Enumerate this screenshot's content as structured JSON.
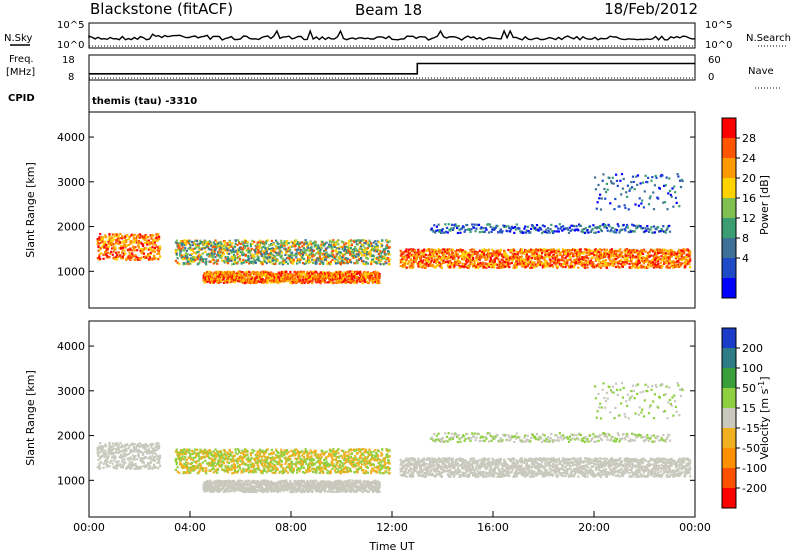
{
  "header": {
    "station": "Blackstone (fitACF)",
    "beam": "Beam 18",
    "date": "18/Feb/2012"
  },
  "noise_panel": {
    "left_label": "N.Sky",
    "right_label": "N.Search",
    "left_ticks": [
      "10^5",
      "10^0"
    ],
    "right_ticks": [
      "10^5",
      "10^0"
    ]
  },
  "freq_panel": {
    "left_label_line1": "Freq.",
    "left_label_line2": "[MHz]",
    "right_label": "Nave",
    "left_ticks": [
      "18",
      "8"
    ],
    "right_ticks": [
      "60",
      "0"
    ],
    "freq_values_mhz": [
      {
        "t": 0,
        "f": 10.5
      },
      {
        "t": 13,
        "f": 10.5
      },
      {
        "t": 13,
        "f": 14.6
      },
      {
        "t": 24,
        "f": 14.6
      }
    ]
  },
  "cpid": {
    "label": "CPID",
    "value": "themis (tau)  -3310"
  },
  "chart_data": [
    {
      "type": "heatmap",
      "name": "power",
      "ylabel": "Slant Range [km]",
      "xlabel": "",
      "ylim": [
        180,
        4560
      ],
      "yticks": [
        1000,
        2000,
        3000,
        4000
      ],
      "xlim": [
        0,
        24
      ],
      "colorbar": {
        "label": "Power [dB]",
        "ticks": [
          "28",
          "24",
          "20",
          "16",
          "12",
          "8",
          "4"
        ],
        "colors": [
          "#ff0000",
          "#ff5500",
          "#ff9900",
          "#ffd200",
          "#80c050",
          "#3a9e72",
          "#3e7098",
          "#1e4ac8",
          "#0000ff"
        ]
      },
      "features": [
        {
          "t0": 0.3,
          "t1": 2.8,
          "r0": 1280,
          "r1": 1860,
          "class": "strong"
        },
        {
          "t0": 3.4,
          "t1": 11.9,
          "r0": 1180,
          "r1": 1720,
          "class": "moderate"
        },
        {
          "t0": 4.5,
          "t1": 11.5,
          "r0": 760,
          "r1": 1020,
          "class": "strong"
        },
        {
          "t0": 12.3,
          "t1": 23.8,
          "r0": 1100,
          "r1": 1520,
          "class": "strong"
        },
        {
          "t0": 13.5,
          "t1": 23.0,
          "r0": 1880,
          "r1": 2080,
          "class": "weak"
        },
        {
          "t0": 20.0,
          "t1": 23.5,
          "r0": 2400,
          "r1": 3200,
          "class": "weak"
        }
      ]
    },
    {
      "type": "heatmap",
      "name": "velocity",
      "ylabel": "Slant Range [km]",
      "xlabel": "Time UT",
      "ylim": [
        180,
        4560
      ],
      "yticks": [
        1000,
        2000,
        3000,
        4000
      ],
      "xlim": [
        0,
        24
      ],
      "xticks": [
        "00:00",
        "04:00",
        "08:00",
        "12:00",
        "16:00",
        "20:00",
        "00:00"
      ],
      "colorbar": {
        "label": "Velocity [m s^-1]",
        "ticks": [
          "200",
          "100",
          "50",
          "15",
          "-15",
          "-50",
          "-100",
          "-200"
        ],
        "colors": [
          "#1a3cc8",
          "#2e7c86",
          "#3a9e3a",
          "#8fd040",
          "#c8c8bc",
          "#f0b020",
          "#ff9000",
          "#ff5000",
          "#ff0000"
        ]
      }
    }
  ]
}
